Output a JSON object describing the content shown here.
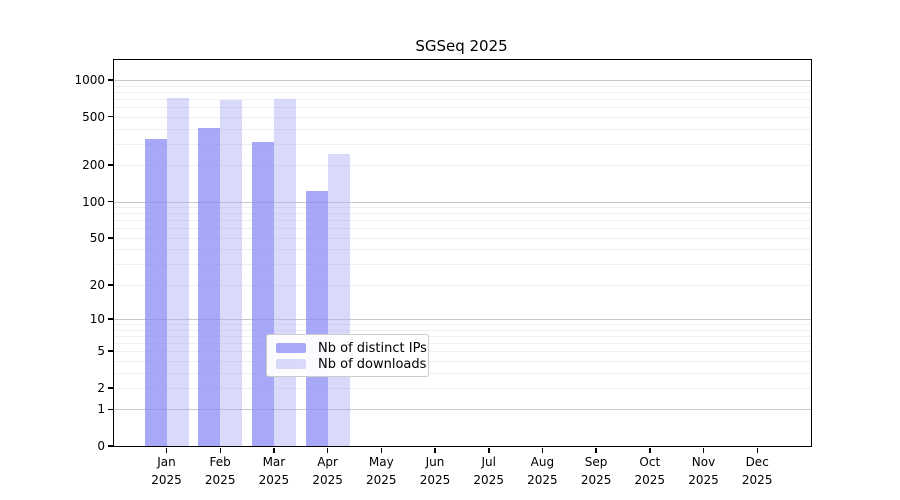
{
  "chart_data": {
    "type": "bar",
    "title": "SGSeq 2025",
    "x_year": "2025",
    "categories": [
      "Jan",
      "Feb",
      "Mar",
      "Apr",
      "May",
      "Jun",
      "Jul",
      "Aug",
      "Sep",
      "Oct",
      "Nov",
      "Dec"
    ],
    "series": [
      {
        "name": "Nb of distinct IPs",
        "color": "rgba(134,134,246,0.72)",
        "values": [
          330,
          405,
          310,
          122,
          null,
          null,
          null,
          null,
          null,
          null,
          null,
          null
        ]
      },
      {
        "name": "Nb of downloads",
        "color": "rgba(170,170,245,0.45)",
        "values": [
          710,
          690,
          700,
          245,
          null,
          null,
          null,
          null,
          null,
          null,
          null,
          null
        ]
      }
    ],
    "y_ticks": [
      0,
      1,
      2,
      5,
      10,
      20,
      50,
      100,
      200,
      500,
      1000
    ],
    "scale": "log1p",
    "ylim": [
      0,
      1460
    ],
    "xlabel": "",
    "ylabel": "",
    "grid": true,
    "legend_position": "lower-center"
  },
  "colors": {
    "grid_major": "#c8c8c8",
    "grid_minor": "#efefef",
    "axis": "#000000",
    "background": "#ffffff",
    "legend_border": "#cccccc"
  }
}
